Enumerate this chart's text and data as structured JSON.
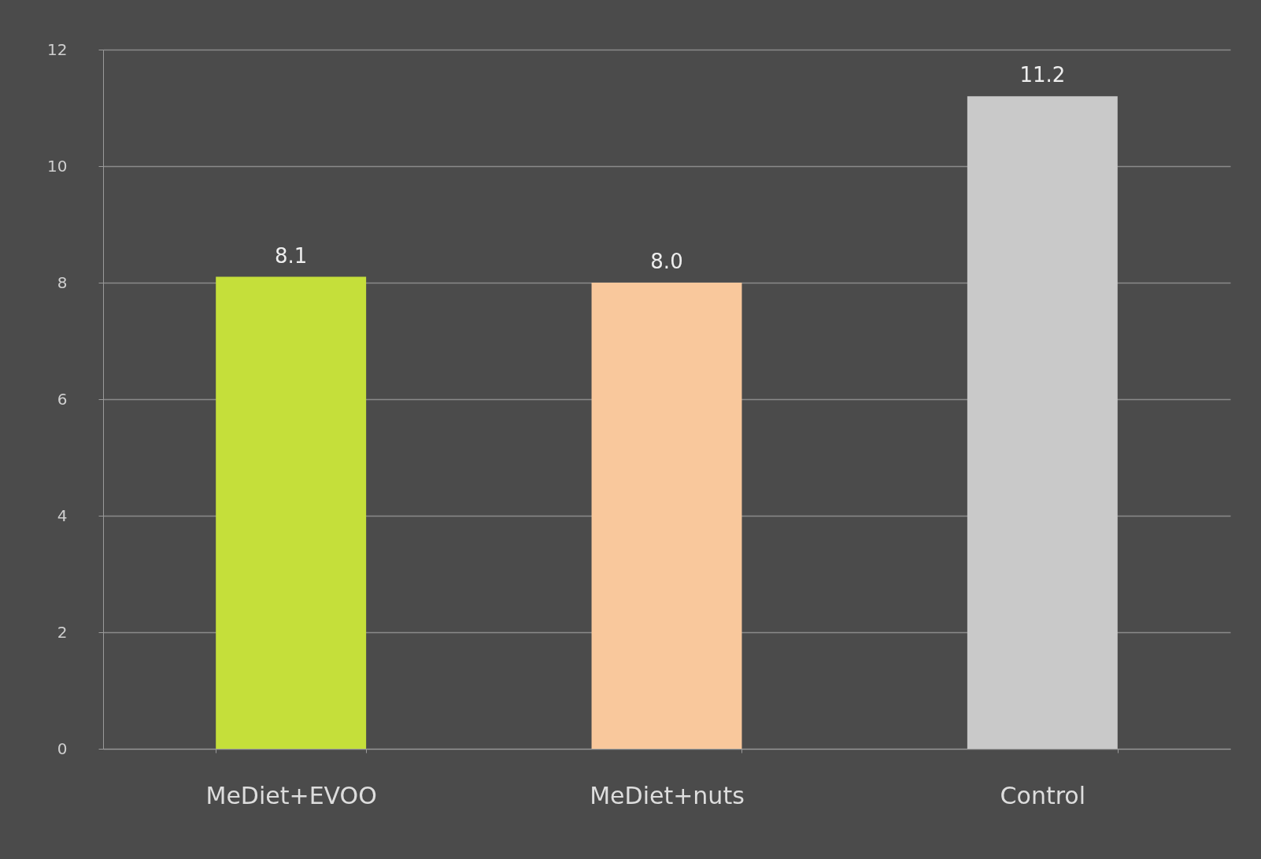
{
  "chart_data": {
    "type": "bar",
    "categories": [
      "MeDiet+EVOO",
      "MeDiet+nuts",
      "Control"
    ],
    "values": [
      8.1,
      8.0,
      11.2
    ],
    "colors": [
      "#c5df3a",
      "#f9c89c",
      "#c9c9c9"
    ],
    "value_labels": [
      "8.1",
      "8.0",
      "11.2"
    ],
    "ylim": [
      0,
      12
    ],
    "yticks": [
      0,
      2,
      4,
      6,
      8,
      10,
      12
    ],
    "grid": true,
    "legend": false
  }
}
